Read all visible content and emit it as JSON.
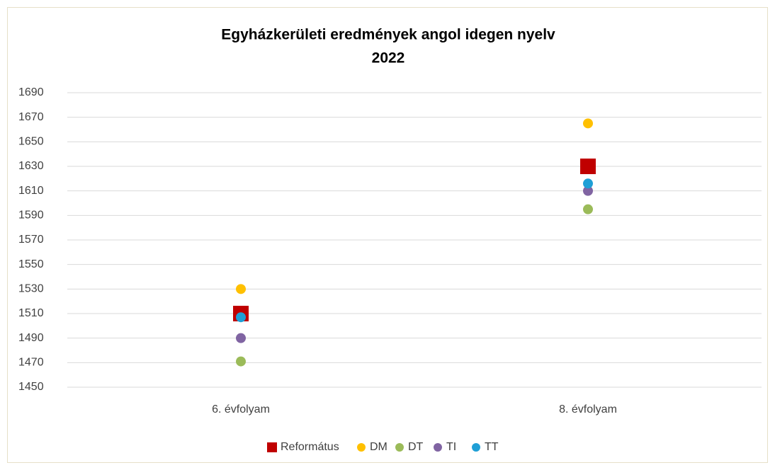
{
  "chart_data": {
    "type": "scatter",
    "title": [
      "Egyházkerületi eredmények angol idegen nyelv",
      "2022"
    ],
    "categories": [
      "6. évfolyam",
      "8. évfolyam"
    ],
    "series": [
      {
        "name": "Református",
        "color": "#c00000",
        "marker": "square",
        "values": [
          1510,
          1630
        ]
      },
      {
        "name": "DM",
        "color": "#ffc000",
        "marker": "circle",
        "values": [
          1530,
          1665
        ]
      },
      {
        "name": "DT",
        "color": "#9bbb59",
        "marker": "circle",
        "values": [
          1471,
          1595
        ]
      },
      {
        "name": "TI",
        "color": "#8064a2",
        "marker": "circle",
        "values": [
          1490,
          1610
        ]
      },
      {
        "name": "TT",
        "color": "#1f9fd6",
        "marker": "circle",
        "values": [
          1507,
          1616
        ]
      }
    ],
    "ylim": [
      1450,
      1690
    ],
    "yticks": [
      1450,
      1470,
      1490,
      1510,
      1530,
      1550,
      1570,
      1590,
      1610,
      1630,
      1650,
      1670,
      1690
    ],
    "grid": true,
    "legend": "bottom"
  }
}
